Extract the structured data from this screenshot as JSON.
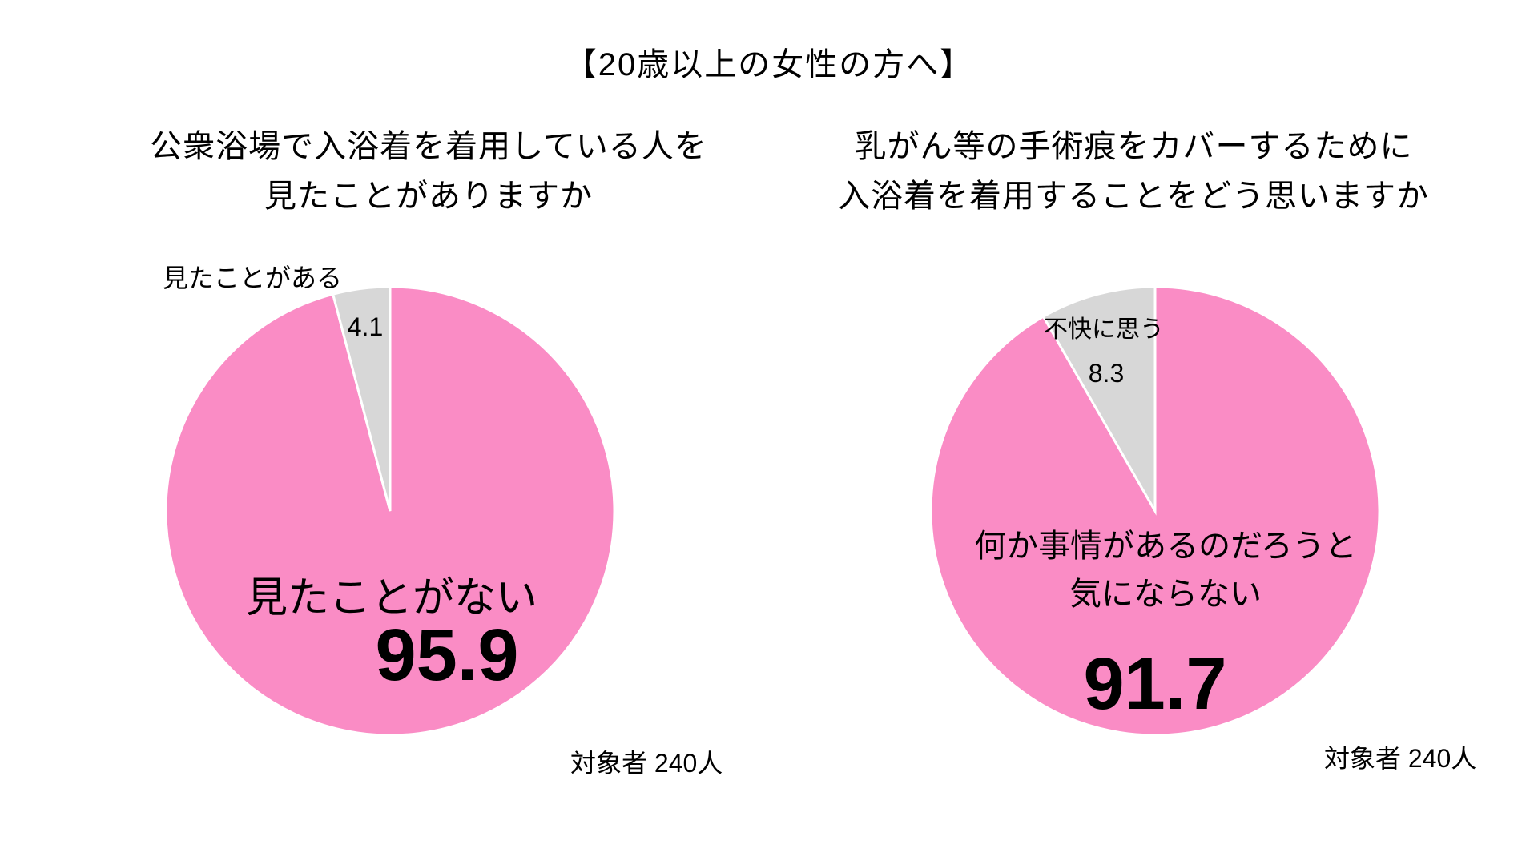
{
  "header": {
    "title": "【20歳以上の女性の方へ】"
  },
  "colors": {
    "pink": "#FA8CC5",
    "gray": "#D7D7D7",
    "text": "#000000",
    "background": "#FFFFFF"
  },
  "left_chart": {
    "title_line1": "公衆浴場で入浴着を着用している人を",
    "title_line2": "見たことがありますか",
    "minor_label": "見たことがある",
    "minor_value": "4.1",
    "major_label": "見たことがない",
    "major_value": "95.9",
    "sample_label": "対象者 240人"
  },
  "right_chart": {
    "title_line1": "乳がん等の手術痕をカバーするために",
    "title_line2": "入浴着を着用することをどう思いますか",
    "minor_label": "不快に思う",
    "minor_value": "8.3",
    "major_label_line1": "何か事情があるのだろうと",
    "major_label_line2": "気にならない",
    "major_value": "91.7",
    "sample_label": "対象者 240人"
  },
  "chart_data": [
    {
      "type": "pie",
      "title": "公衆浴場で入浴着を着用している人を見たことがありますか",
      "categories": [
        "見たことがない",
        "見たことがある"
      ],
      "values": [
        95.9,
        4.1
      ],
      "unit": "%",
      "colors": [
        "#FA8CC5",
        "#D7D7D7"
      ],
      "start_angle_deg": 0,
      "direction": "clockwise",
      "legend": "none",
      "note": "対象者 240人"
    },
    {
      "type": "pie",
      "title": "乳がん等の手術痕をカバーするために入浴着を着用することをどう思いますか",
      "categories": [
        "何か事情があるのだろうと気にならない",
        "不快に思う"
      ],
      "values": [
        91.7,
        8.3
      ],
      "unit": "%",
      "colors": [
        "#FA8CC5",
        "#D7D7D7"
      ],
      "start_angle_deg": 0,
      "direction": "clockwise",
      "legend": "none",
      "note": "対象者 240人"
    }
  ]
}
